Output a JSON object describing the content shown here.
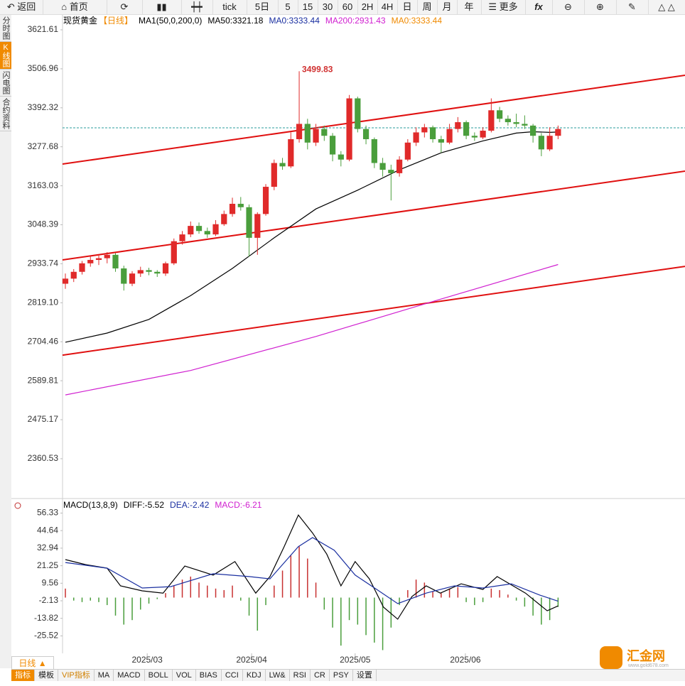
{
  "toolbar": {
    "back": "返回",
    "home": "首页",
    "items": [
      "tick",
      "5日",
      "5",
      "15",
      "30",
      "60",
      "2H",
      "4H",
      "日",
      "周",
      "月",
      "年"
    ],
    "more": "更多",
    "fx": "fx"
  },
  "sidebar": [
    "分时图",
    "K线图",
    "闪电图",
    "合约资料"
  ],
  "chart_data": [
    {
      "type": "candlestick",
      "title": "现货黄金",
      "period": "【日线】",
      "legend": [
        {
          "label": "MA1(50,0,200,0)",
          "color": "#000000"
        },
        {
          "label": "MA50:3321.18",
          "color": "#000000"
        },
        {
          "label": "MA0:3333.44",
          "color": "#1a2fa0"
        },
        {
          "label": "MA200:2931.43",
          "color": "#d020d0"
        },
        {
          "label": "MA0:3333.44",
          "color": "#f08a00"
        }
      ],
      "up_color": "#e02a2a",
      "down_color": "#4a9e3c",
      "xlim": [
        -0.34,
        74.2
      ],
      "ylim": [
        2247.6,
        3667.5
      ],
      "yticks": [
        3621.61,
        3506.96,
        3392.32,
        3277.68,
        3163.03,
        3048.39,
        2933.74,
        {
          "value": 2819.1,
          "label": "2819.10"
        },
        2704.46,
        2589.81,
        2475.17,
        2360.53
      ],
      "ohlc": [
        [
          2875,
          2905,
          2860,
          2890
        ],
        [
          2890,
          2918,
          2880,
          2910
        ],
        [
          2910,
          2942,
          2902,
          2935
        ],
        [
          2935,
          2955,
          2925,
          2945
        ],
        [
          2945,
          2958,
          2930,
          2950
        ],
        [
          2950,
          2968,
          2935,
          2960
        ],
        [
          2960,
          2965,
          2910,
          2920
        ],
        [
          2920,
          2928,
          2855,
          2875
        ],
        [
          2875,
          2912,
          2868,
          2905
        ],
        [
          2905,
          2925,
          2895,
          2915
        ],
        [
          2915,
          2922,
          2900,
          2910
        ],
        [
          2910,
          2915,
          2895,
          2905
        ],
        [
          2905,
          2940,
          2898,
          2935
        ],
        [
          2935,
          3008,
          2930,
          3000
        ],
        [
          3000,
          3030,
          2990,
          3020
        ],
        [
          3020,
          3058,
          3012,
          3045
        ],
        [
          3045,
          3055,
          3022,
          3030
        ],
        [
          3030,
          3040,
          3010,
          3020
        ],
        [
          3020,
          3062,
          3015,
          3050
        ],
        [
          3050,
          3090,
          3045,
          3080
        ],
        [
          3080,
          3128,
          3072,
          3110
        ],
        [
          3110,
          3130,
          3090,
          3100
        ],
        [
          3100,
          3108,
          2955,
          3010
        ],
        [
          3010,
          3085,
          2960,
          3080
        ],
        [
          3080,
          3168,
          3075,
          3160
        ],
        [
          3160,
          3240,
          3150,
          3230
        ],
        [
          3230,
          3245,
          3210,
          3220
        ],
        [
          3220,
          3320,
          3215,
          3300
        ],
        [
          3300,
          3499.83,
          3290,
          3345
        ],
        [
          3345,
          3360,
          3270,
          3290
        ],
        [
          3290,
          3345,
          3280,
          3330
        ],
        [
          3330,
          3340,
          3295,
          3310
        ],
        [
          3310,
          3318,
          3235,
          3255
        ],
        [
          3255,
          3265,
          3220,
          3240
        ],
        [
          3240,
          3430,
          3235,
          3420
        ],
        [
          3420,
          3425,
          3320,
          3330
        ],
        [
          3330,
          3340,
          3285,
          3300
        ],
        [
          3300,
          3305,
          3215,
          3230
        ],
        [
          3230,
          3245,
          3190,
          3210
        ],
        [
          3210,
          3225,
          3120,
          3200
        ],
        [
          3200,
          3250,
          3190,
          3240
        ],
        [
          3240,
          3300,
          3235,
          3290
        ],
        [
          3290,
          3335,
          3280,
          3320
        ],
        [
          3320,
          3345,
          3305,
          3335
        ],
        [
          3335,
          3340,
          3290,
          3300
        ],
        [
          3300,
          3310,
          3260,
          3290
        ],
        [
          3290,
          3345,
          3285,
          3330
        ],
        [
          3330,
          3365,
          3320,
          3350
        ],
        [
          3350,
          3355,
          3300,
          3310
        ],
        [
          3310,
          3320,
          3295,
          3305
        ],
        [
          3305,
          3335,
          3300,
          3325
        ],
        [
          3325,
          3420,
          3320,
          3385
        ],
        [
          3385,
          3395,
          3350,
          3360
        ],
        [
          3360,
          3370,
          3340,
          3350
        ],
        [
          3350,
          3375,
          3335,
          3345
        ],
        [
          3345,
          3370,
          3330,
          3340
        ],
        [
          3340,
          3345,
          3290,
          3310
        ],
        [
          3310,
          3318,
          3250,
          3270
        ],
        [
          3270,
          3335,
          3265,
          3310
        ],
        [
          3310,
          3340,
          3300,
          3330
        ]
      ],
      "series": [
        {
          "name": "MA50",
          "color": "#000000",
          "x": [
            0,
            5,
            10,
            15,
            20,
            25,
            30,
            35,
            40,
            45,
            50,
            54,
            56,
            58,
            59
          ],
          "values": [
            2703,
            2730,
            2770,
            2840,
            2920,
            3010,
            3095,
            3150,
            3210,
            3260,
            3295,
            3318,
            3322,
            3320,
            3321.18
          ]
        },
        {
          "name": "MA200",
          "color": "#d020d0",
          "x": [
            0,
            15,
            30,
            45,
            59
          ],
          "values": [
            2548,
            2620,
            2720,
            2830,
            2931.43
          ]
        }
      ],
      "trend_lines": [
        {
          "color": "#e01010",
          "x": [
            -0.34,
            74.2
          ],
          "values": [
            3227,
            3488
          ]
        },
        {
          "color": "#e01010",
          "x": [
            -0.34,
            74.2
          ],
          "values": [
            2945,
            3206
          ]
        },
        {
          "color": "#e01010",
          "x": [
            -0.34,
            74.2
          ],
          "values": [
            2665,
            2926
          ]
        }
      ],
      "last_price": 3333.44,
      "annotations": [
        {
          "x": 28,
          "value": 3499.83
        }
      ]
    },
    {
      "type": "macd",
      "title": "MACD(13,8,9)",
      "legend": [
        {
          "label": "DIFF:-5.52",
          "color": "#000000"
        },
        {
          "label": "DEA:-2.42",
          "color": "#1a2fa0"
        },
        {
          "label": "MACD:-6.21",
          "color": "#d020d0"
        }
      ],
      "xlim": [
        -0.34,
        74.2
      ],
      "ylim": [
        -37.15,
        64.6
      ],
      "yticks": [
        56.33,
        44.64,
        32.94,
        21.25,
        9.56,
        -2.13,
        -13.82,
        -25.52
      ],
      "xticks": [
        {
          "value": 9.8,
          "label": "2025/03"
        },
        {
          "value": 22.3,
          "label": "2025/04"
        },
        {
          "value": 34.7,
          "label": "2025/05"
        },
        {
          "value": 47.9,
          "label": "2025/06"
        }
      ],
      "series": [
        {
          "name": "DIFF",
          "color": "#000000",
          "x": [
            0,
            2.4,
            5,
            6.6,
            9.2,
            11.7,
            14.3,
            17.7,
            20.3,
            22.8,
            24.5,
            26.2,
            27.9,
            29.6,
            31.3,
            33,
            34.7,
            36.4,
            38.1,
            39.8,
            41.5,
            43.2,
            44.9,
            47.4,
            50,
            51.7,
            55.1,
            57.7,
            59
          ],
          "values": [
            25.3,
            22,
            19.6,
            7.8,
            4.5,
            3,
            21,
            15,
            24,
            3,
            14,
            34,
            55,
            43,
            29,
            7.8,
            24,
            12.5,
            -6.4,
            -14.4,
            0.7,
            7.8,
            3,
            9.2,
            5.4,
            14,
            3,
            -8.8,
            -5.52
          ]
        },
        {
          "name": "DEA",
          "color": "#1a2fa0",
          "x": [
            0,
            5,
            9.2,
            12.6,
            17.7,
            22,
            24.5,
            27.9,
            29.6,
            32.2,
            34.7,
            37.3,
            39.8,
            43.2,
            46.6,
            50,
            53.4,
            56.8,
            59
          ],
          "values": [
            23.4,
            19.6,
            6.4,
            7.3,
            15.9,
            14,
            12.5,
            34,
            40,
            31.5,
            15,
            5.4,
            -4,
            3,
            7.8,
            6.4,
            9.2,
            1.7,
            -2.42
          ]
        }
      ],
      "histogram": {
        "up_color": "#c83030",
        "down_color": "#4a9e3c",
        "values": [
          6,
          -2,
          -3,
          -2,
          -3,
          -5,
          -12,
          -18,
          -15,
          -8,
          -4,
          -1,
          3,
          8,
          12,
          14,
          10,
          8,
          6,
          5,
          8,
          -2,
          -12,
          -22,
          -5,
          8,
          18,
          28,
          34,
          26,
          10,
          -8,
          -20,
          -32,
          -15,
          -18,
          -25,
          -30,
          -35,
          -20,
          -5,
          5,
          12,
          10,
          4,
          3,
          6,
          7,
          -3,
          -5,
          -3,
          6,
          5,
          2,
          -2,
          -6,
          -12,
          -18,
          -15,
          -6.21
        ]
      }
    }
  ],
  "period_selector": "日线 ▲",
  "tabs": [
    "指标",
    "模板",
    "VIP指标",
    "MA",
    "MACD",
    "BOLL",
    "VOL",
    "BIAS",
    "CCI",
    "KDJ",
    "LW&",
    "RSI",
    "CR",
    "PSY",
    "设置"
  ],
  "logo": {
    "name": "汇金网",
    "url": "www.gold678.com"
  }
}
